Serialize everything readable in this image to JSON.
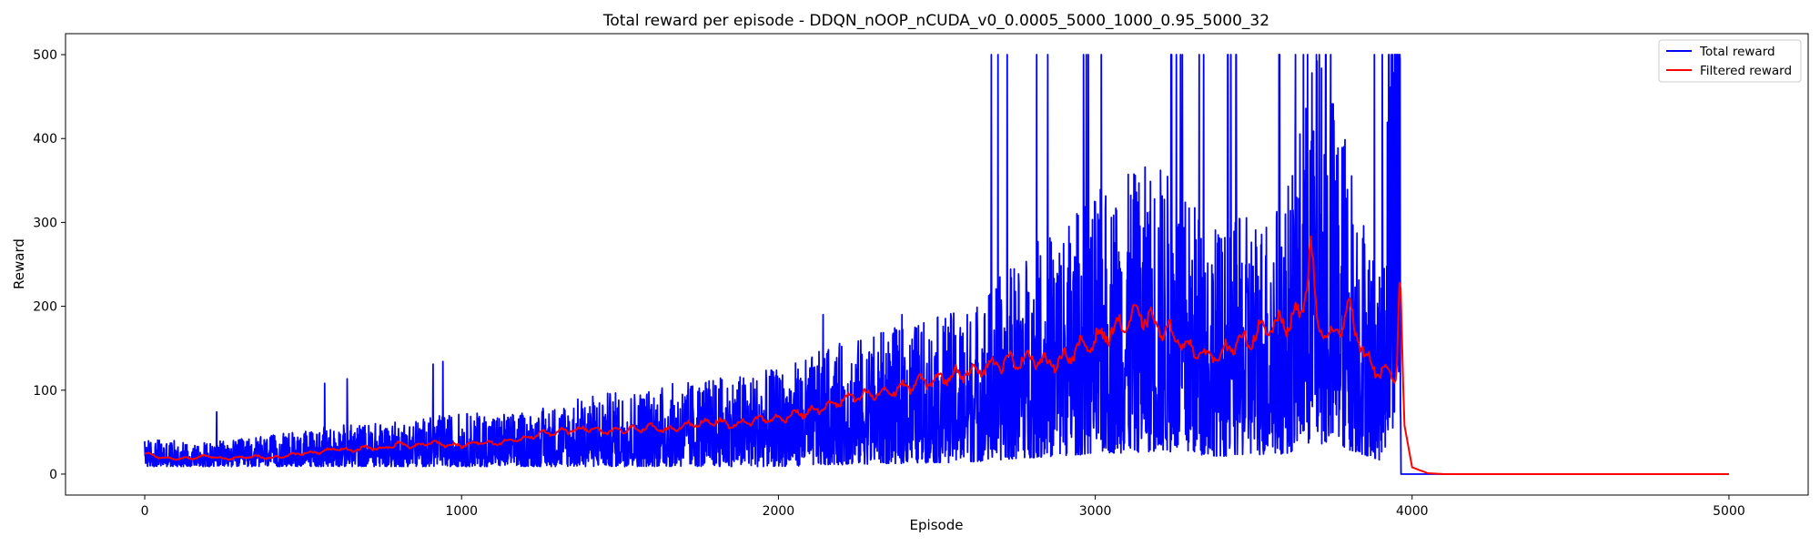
{
  "chart_data": {
    "type": "line",
    "title": "Total reward per episode - DDQN_nOOP_nCUDA_v0_0.0005_5000_1000_0.95_5000_32",
    "xlabel": "Episode",
    "ylabel": "Reward",
    "xlim": [
      -250,
      5250
    ],
    "ylim": [
      -25,
      525
    ],
    "xticks": [
      0,
      1000,
      2000,
      3000,
      4000,
      5000
    ],
    "yticks": [
      0,
      100,
      200,
      300,
      400,
      500
    ],
    "grid": false,
    "legend_position": "top-right",
    "episodes": 5000,
    "series": [
      {
        "name": "Total reward",
        "color": "#0000ff",
        "description": "Raw reward per episode; noisy, generally rising from ~20 to ~150 average with spikes up to 500 between episode 2600 and 3960, then constant 0 from ~3965 to 5000",
        "x": [
          0,
          200,
          400,
          600,
          800,
          1000,
          1200,
          1400,
          1600,
          1800,
          2000,
          2200,
          2400,
          2600,
          2800,
          3000,
          3200,
          3400,
          3600,
          3700,
          3800,
          3900,
          3960,
          3965,
          4500,
          5000
        ],
        "values": [
          20,
          18,
          22,
          28,
          30,
          35,
          35,
          45,
          50,
          55,
          60,
          75,
          85,
          95,
          130,
          160,
          180,
          140,
          160,
          250,
          190,
          110,
          500,
          0,
          0,
          0
        ]
      },
      {
        "name": "Filtered reward",
        "color": "#ff0000",
        "x": [
          0,
          50,
          100,
          150,
          200,
          250,
          300,
          350,
          400,
          450,
          500,
          550,
          600,
          650,
          700,
          750,
          800,
          850,
          900,
          950,
          1000,
          1050,
          1100,
          1150,
          1200,
          1250,
          1300,
          1350,
          1400,
          1450,
          1500,
          1550,
          1600,
          1650,
          1700,
          1750,
          1800,
          1850,
          1900,
          1950,
          2000,
          2050,
          2100,
          2150,
          2200,
          2250,
          2300,
          2350,
          2400,
          2450,
          2500,
          2550,
          2600,
          2650,
          2700,
          2750,
          2800,
          2850,
          2900,
          2950,
          3000,
          3050,
          3100,
          3150,
          3200,
          3250,
          3300,
          3350,
          3400,
          3450,
          3500,
          3550,
          3600,
          3650,
          3680,
          3700,
          3750,
          3800,
          3850,
          3900,
          3950,
          3962,
          3975,
          4000,
          4050,
          4100,
          4500,
          5000
        ],
        "values": [
          25,
          20,
          18,
          19,
          22,
          18,
          20,
          21,
          19,
          22,
          25,
          26,
          30,
          28,
          32,
          30,
          36,
          33,
          38,
          35,
          34,
          38,
          36,
          40,
          42,
          48,
          50,
          52,
          55,
          50,
          52,
          54,
          56,
          52,
          58,
          60,
          64,
          58,
          62,
          66,
          65,
          72,
          74,
          80,
          88,
          92,
          95,
          98,
          104,
          110,
          112,
          118,
          122,
          128,
          132,
          135,
          140,
          130,
          138,
          150,
          160,
          170,
          182,
          190,
          175,
          165,
          150,
          140,
          145,
          155,
          165,
          175,
          180,
          190,
          270,
          180,
          160,
          200,
          140,
          120,
          118,
          250,
          60,
          8,
          1,
          0,
          0,
          0
        ]
      }
    ]
  }
}
